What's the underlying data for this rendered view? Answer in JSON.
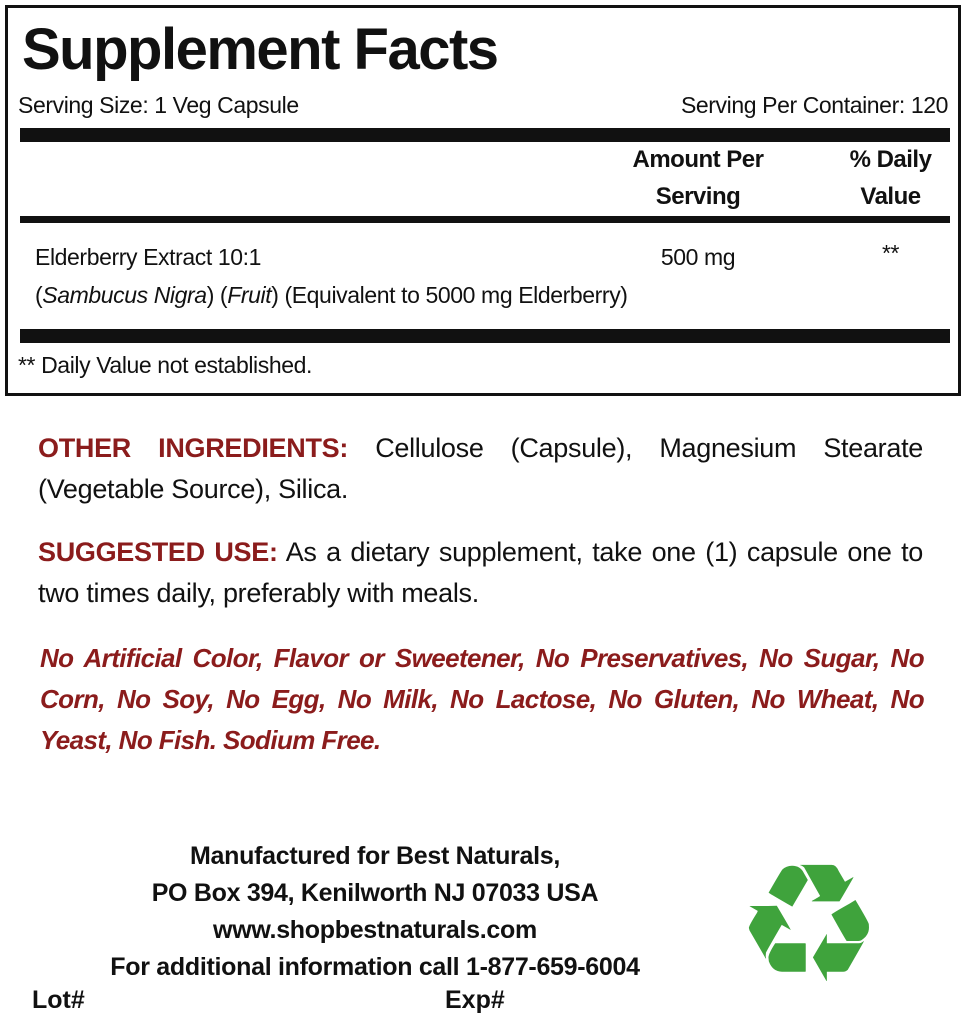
{
  "facts": {
    "title": "Supplement Facts",
    "serving_size": "Serving Size: 1 Veg Capsule",
    "servings_per_container": "Serving Per Container: 120",
    "col_amount_line1": "Amount Per",
    "col_amount_line2": "Serving",
    "col_dv_line1": "% Daily",
    "col_dv_line2": "Value",
    "ingredient": {
      "name": "Elderberry Extract 10:1",
      "amount": "500 mg",
      "dv": "**",
      "latin_name": "Sambucus Nigra",
      "part": "Fruit",
      "equivalent": "(Equivalent to 5000 mg Elderberry)"
    },
    "footnote": "** Daily Value not established."
  },
  "other_ingredients": {
    "label": "OTHER INGREDIENTS:",
    "text": "Cellulose (Capsule), Magnesium Stearate (Vegetable Source), Silica."
  },
  "suggested_use": {
    "label": "SUGGESTED USE:",
    "text": "As a dietary supplement, take one (1) capsule one to two times daily, preferably with meals."
  },
  "claims": "No Artificial Color, Flavor or Sweetener, No Preservatives, No Sugar, No Corn, No Soy, No Egg, No Milk, No Lactose, No Gluten, No Wheat, No Yeast, No Fish. Sodium Free.",
  "manufacturer": {
    "line1": "Manufactured for Best Naturals,",
    "line2": "PO Box 394, Kenilworth NJ 07033 USA",
    "website": "www.shopbestnaturals.com",
    "phone_line": "For additional information call 1-877-659-6004",
    "lot_label": "Lot#",
    "exp_label": "Exp#"
  },
  "icons": {
    "recycle": "recycle-icon"
  },
  "colors": {
    "accent_red": "#8b1c1c",
    "recycle_green": "#3fa33c"
  }
}
